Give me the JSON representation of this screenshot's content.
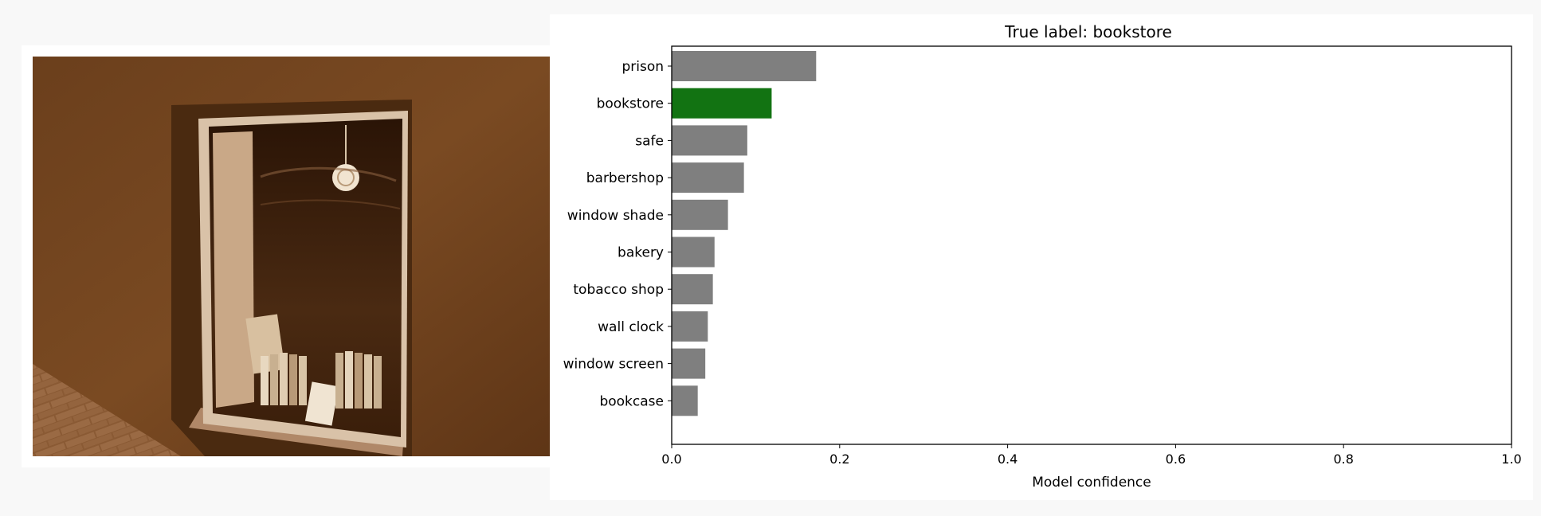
{
  "photo": {
    "description_icon": "bookstore-window-photo",
    "tint": "#7a4a22"
  },
  "chart_data": {
    "type": "bar",
    "orientation": "horizontal",
    "title": "True label: bookstore",
    "xlabel": "Model confidence",
    "ylabel": "",
    "xlim": [
      0,
      1
    ],
    "xticks": [
      "0.0",
      "0.2",
      "0.4",
      "0.6",
      "0.8",
      "1.0"
    ],
    "categories": [
      "prison",
      "bookstore",
      "safe",
      "barbershop",
      "window shade",
      "bakery",
      "tobacco shop",
      "wall clock",
      "window screen",
      "bookcase"
    ],
    "values": [
      0.172,
      0.119,
      0.09,
      0.086,
      0.067,
      0.051,
      0.049,
      0.043,
      0.04,
      0.031
    ],
    "highlight": "bookstore",
    "bar_color": "#7f7f7f",
    "highlight_color": "#127312",
    "grid": false,
    "legend": "none"
  }
}
